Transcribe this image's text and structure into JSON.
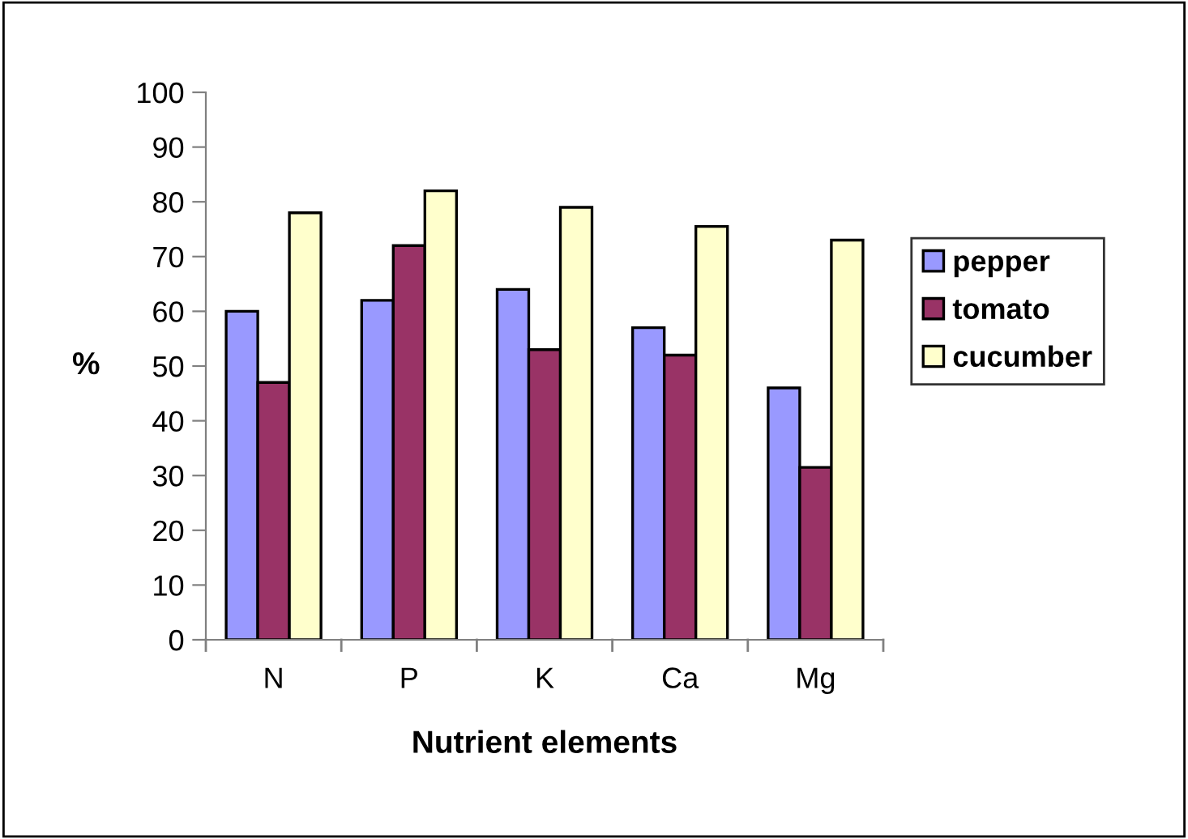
{
  "chart_data": {
    "type": "bar",
    "xlabel": "Nutrient elements",
    "ylabel": "%",
    "categories": [
      "N",
      "P",
      "K",
      "Ca",
      "Mg"
    ],
    "series": [
      {
        "name": "pepper",
        "color": "#9999ff",
        "values": [
          60,
          62,
          64,
          57,
          46
        ]
      },
      {
        "name": "tomato",
        "color": "#993366",
        "values": [
          47,
          72,
          53,
          52,
          31.5
        ]
      },
      {
        "name": "cucumber",
        "color": "#ffffcc",
        "values": [
          78,
          82,
          79,
          75.5,
          73
        ]
      }
    ],
    "ylim": [
      0,
      100
    ],
    "yticks": [
      0,
      10,
      20,
      30,
      40,
      50,
      60,
      70,
      80,
      90,
      100
    ],
    "grid": false,
    "legend": "right"
  }
}
